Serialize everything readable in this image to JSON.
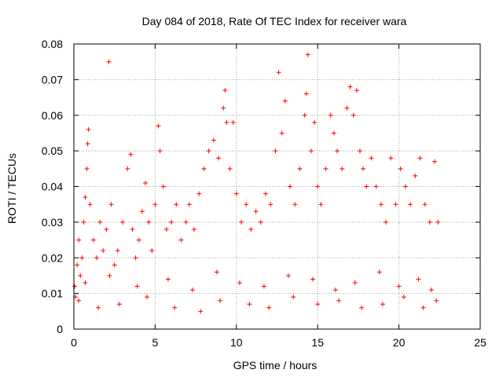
{
  "chart_data": {
    "type": "scatter",
    "title": "Day 084 of 2018, Rate Of TEC Index for receiver wara",
    "xlabel": "GPS time / hours",
    "ylabel": "ROTI / TECUs",
    "xlim": [
      0,
      25
    ],
    "ylim": [
      0,
      0.08
    ],
    "x_ticks": [
      0,
      5,
      10,
      15,
      20,
      25
    ],
    "x_tick_labels": [
      "0",
      "5",
      "10",
      "15",
      "20",
      "25"
    ],
    "y_ticks": [
      0,
      0.01,
      0.02,
      0.03,
      0.04,
      0.05,
      0.06,
      0.07,
      0.08
    ],
    "y_tick_labels": [
      "0",
      "0.01",
      "0.02",
      "0.03",
      "0.04",
      "0.05",
      "0.06",
      "0.07",
      "0.08"
    ],
    "grid": true,
    "marker": "+",
    "color": "#ff0000",
    "series": [
      {
        "name": "ROTI",
        "x": [
          0.05,
          0.1,
          0.2,
          0.3,
          0.4,
          0.5,
          0.6,
          0.7,
          0.8,
          0.85,
          0.9,
          1.0,
          1.2,
          1.4,
          1.6,
          1.8,
          2.0,
          2.15,
          2.3,
          2.5,
          2.7,
          3.0,
          3.3,
          3.5,
          3.6,
          3.8,
          4.0,
          4.2,
          4.4,
          4.6,
          4.8,
          5.0,
          5.2,
          5.3,
          5.5,
          5.7,
          6.0,
          6.3,
          6.6,
          6.9,
          7.1,
          7.4,
          7.7,
          8.0,
          8.3,
          8.6,
          8.9,
          9.2,
          9.3,
          9.4,
          9.6,
          9.8,
          10.0,
          10.3,
          10.6,
          10.9,
          11.2,
          11.5,
          11.8,
          12.1,
          12.4,
          12.6,
          12.8,
          13.0,
          13.3,
          13.6,
          13.9,
          14.2,
          14.3,
          14.4,
          14.6,
          14.8,
          15.0,
          15.2,
          15.5,
          15.8,
          16.0,
          16.2,
          16.5,
          16.8,
          17.0,
          17.2,
          17.4,
          17.6,
          17.8,
          18.0,
          18.3,
          18.6,
          18.9,
          19.2,
          19.5,
          19.8,
          20.1,
          20.4,
          20.7,
          21.0,
          21.3,
          21.6,
          21.9,
          22.2,
          22.4,
          0.3,
          1.5,
          2.8,
          4.5,
          6.2,
          7.8,
          9.0,
          10.8,
          12.0,
          13.5,
          15.0,
          16.3,
          17.7,
          19.0,
          20.3,
          21.5,
          22.3,
          0.7,
          2.2,
          3.9,
          5.8,
          7.3,
          8.8,
          10.2,
          11.7,
          13.2,
          14.7,
          16.1,
          17.3,
          18.8,
          20.0,
          21.2,
          22.0
        ],
        "y": [
          0.012,
          0.009,
          0.018,
          0.025,
          0.015,
          0.02,
          0.03,
          0.037,
          0.045,
          0.052,
          0.056,
          0.035,
          0.025,
          0.02,
          0.03,
          0.022,
          0.028,
          0.075,
          0.035,
          0.018,
          0.022,
          0.03,
          0.045,
          0.049,
          0.028,
          0.02,
          0.025,
          0.033,
          0.041,
          0.03,
          0.022,
          0.035,
          0.057,
          0.05,
          0.04,
          0.028,
          0.03,
          0.035,
          0.025,
          0.03,
          0.035,
          0.028,
          0.038,
          0.045,
          0.05,
          0.053,
          0.048,
          0.062,
          0.067,
          0.058,
          0.045,
          0.058,
          0.038,
          0.03,
          0.035,
          0.028,
          0.033,
          0.03,
          0.038,
          0.035,
          0.05,
          0.072,
          0.055,
          0.064,
          0.04,
          0.035,
          0.045,
          0.06,
          0.066,
          0.077,
          0.05,
          0.058,
          0.04,
          0.035,
          0.045,
          0.06,
          0.055,
          0.05,
          0.045,
          0.062,
          0.068,
          0.06,
          0.067,
          0.05,
          0.045,
          0.04,
          0.048,
          0.04,
          0.035,
          0.03,
          0.048,
          0.035,
          0.045,
          0.04,
          0.035,
          0.043,
          0.048,
          0.035,
          0.03,
          0.047,
          0.03,
          0.008,
          0.006,
          0.007,
          0.009,
          0.006,
          0.005,
          0.008,
          0.007,
          0.006,
          0.009,
          0.007,
          0.008,
          0.006,
          0.007,
          0.009,
          0.006,
          0.008,
          0.013,
          0.015,
          0.012,
          0.014,
          0.011,
          0.016,
          0.013,
          0.012,
          0.015,
          0.014,
          0.011,
          0.013,
          0.016,
          0.012,
          0.014,
          0.011
        ]
      }
    ]
  }
}
